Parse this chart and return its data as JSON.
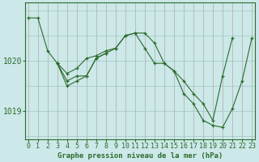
{
  "title": "Graphe pression niveau de la mer (hPa)",
  "bg_color": "#cce8e8",
  "grid_color": "#aacccc",
  "line_color": "#2d6b2d",
  "marker_color": "#2d6b2d",
  "yticks": [
    1019,
    1020
  ],
  "xlim": [
    -0.3,
    23.3
  ],
  "ylim": [
    1018.45,
    1021.15
  ],
  "series": [
    {
      "x": [
        0,
        1,
        2,
        3,
        4,
        5,
        6,
        7,
        8,
        9,
        10,
        11,
        12,
        13,
        14,
        15,
        16,
        17,
        18,
        19,
        20,
        21
      ],
      "y": [
        1020.85,
        1020.85,
        1020.2,
        1019.95,
        1019.75,
        1019.85,
        1020.05,
        1020.1,
        1020.2,
        1020.25,
        1020.5,
        1020.55,
        1020.55,
        1020.35,
        1019.95,
        1019.8,
        1019.6,
        1019.35,
        1019.15,
        1018.82,
        1019.7,
        1020.45
      ]
    },
    {
      "x": [
        3,
        4,
        5,
        6,
        7,
        8,
        9,
        10,
        11,
        12,
        13,
        14,
        15,
        16,
        17,
        18,
        19,
        20,
        21,
        22,
        23
      ],
      "y": [
        1019.95,
        1019.6,
        1019.7,
        1019.7,
        1020.05,
        1020.15,
        1020.25,
        1020.5,
        1020.55,
        1020.25,
        1019.95,
        1019.95,
        1019.8,
        1019.35,
        1019.15,
        1018.82,
        1018.72,
        1018.68,
        1019.05,
        1019.6,
        1020.45
      ]
    },
    {
      "x": [
        3,
        4,
        5,
        6,
        7,
        8
      ],
      "y": [
        1019.95,
        1019.5,
        1019.6,
        1019.7,
        1020.05,
        1020.15
      ]
    }
  ],
  "xlabel_fontsize": 6.5,
  "ylabel_fontsize": 7.0,
  "tick_fontsize": 6.0
}
